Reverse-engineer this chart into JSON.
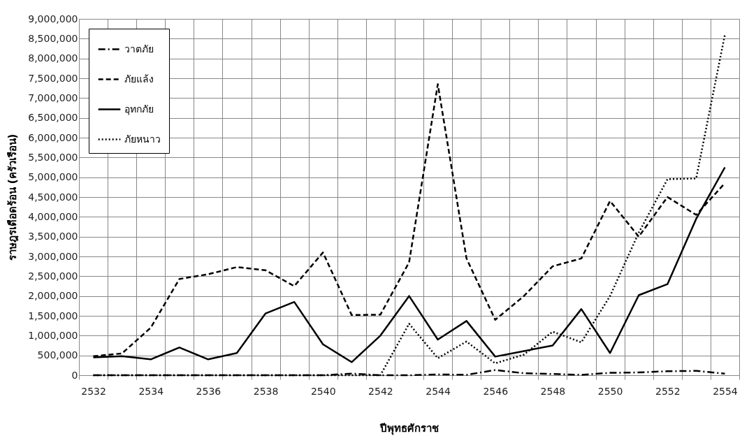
{
  "chart_data": {
    "type": "line",
    "xlabel": "ปีพุทธศักราช",
    "ylabel": "ราษฎรเดือดร้อน (ครัวเรือน)",
    "categories": [
      "2532",
      null,
      "2534",
      null,
      "2536",
      null,
      "2538",
      null,
      "2540",
      null,
      "2542",
      null,
      "2544",
      null,
      "2546",
      null,
      "2548",
      null,
      "2550",
      null,
      "2552",
      null,
      "2554"
    ],
    "ylim": [
      0,
      9000000
    ],
    "yticks": [
      0,
      {
        "value": 500000,
        "label": "500,000"
      },
      {
        "value": 1000000,
        "label": "1,000,000"
      },
      {
        "value": 1500000,
        "label": "1,500,000"
      },
      {
        "value": 2000000,
        "label": "2,000,000"
      },
      {
        "value": 2500000,
        "label": "2,500,000"
      },
      {
        "value": 3000000,
        "label": "3,000,000"
      },
      {
        "value": 3500000,
        "label": "3,500,000"
      },
      {
        "value": 4000000,
        "label": "4,000,000"
      },
      {
        "value": 4500000,
        "label": "4,500,000"
      },
      {
        "value": 5000000,
        "label": "5,000,000"
      },
      {
        "value": 5500000,
        "label": "5,500,000"
      },
      {
        "value": 6000000,
        "label": "6,000,000"
      },
      {
        "value": 6500000,
        "label": "6,500,000"
      },
      {
        "value": 7000000,
        "label": "7,000,000"
      },
      {
        "value": 7500000,
        "label": "7,500,000"
      },
      {
        "value": 8000000,
        "label": "8,000,000"
      },
      {
        "value": 8500000,
        "label": "8,500,000"
      },
      {
        "value": 9000000,
        "label": "9,000,000"
      }
    ],
    "grid": true,
    "legend": "top left",
    "marker": "none",
    "series": [
      {
        "name": "วาตภัย",
        "color": "#000000",
        "line_style": "dashdot",
        "values": [
          0,
          0,
          0,
          0,
          0,
          0,
          0,
          0,
          0,
          40000,
          0,
          0,
          20000,
          10000,
          130000,
          50000,
          30000,
          10000,
          60000,
          70000,
          100000,
          110000,
          40000
        ]
      },
      {
        "name": "ภัยแล้ง",
        "color": "#000000",
        "line_style": "dashed",
        "values": [
          480000,
          550000,
          1200000,
          2430000,
          2550000,
          2730000,
          2650000,
          2250000,
          3100000,
          1520000,
          1530000,
          2850000,
          7350000,
          2950000,
          1400000,
          2000000,
          2750000,
          2950000,
          4400000,
          3500000,
          4500000,
          4050000,
          4850000
        ]
      },
      {
        "name": "อุทกภัย",
        "color": "#000000",
        "line_style": "solid",
        "values": [
          450000,
          480000,
          400000,
          700000,
          400000,
          560000,
          1560000,
          1850000,
          780000,
          330000,
          1000000,
          2000000,
          900000,
          1370000,
          470000,
          610000,
          750000,
          1670000,
          560000,
          2020000,
          2300000,
          3950000,
          5250000
        ]
      },
      {
        "name": "ภัยหนาว",
        "color": "#000000",
        "line_style": "dotted",
        "values": [
          0,
          0,
          0,
          0,
          0,
          0,
          0,
          0,
          0,
          0,
          0,
          1300000,
          430000,
          850000,
          300000,
          520000,
          1100000,
          830000,
          2000000,
          3600000,
          4950000,
          4970000,
          8600000
        ]
      }
    ]
  }
}
